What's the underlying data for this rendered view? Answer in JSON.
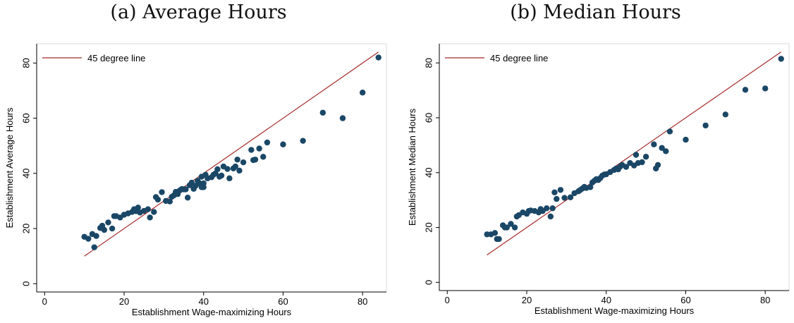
{
  "colors": {
    "line": "#a52a2a",
    "points": "#1a4766",
    "axis": "#000000",
    "frame": "#d9d9d9"
  },
  "chart_data": [
    {
      "type": "scatter",
      "title": "(a) Average Hours",
      "xlabel": "Establishment Wage-maximizing Hours",
      "ylabel": "Establishment Average Hours",
      "xlim": [
        -2,
        86
      ],
      "ylim": [
        -3,
        87
      ],
      "xticks": [
        0,
        20,
        40,
        60,
        80
      ],
      "yticks": [
        0,
        20,
        40,
        60,
        80
      ],
      "grid": false,
      "legend_position": "top-left",
      "line": {
        "name": "45 degree line",
        "x": [
          10,
          84
        ],
        "y": [
          10,
          84
        ]
      },
      "points": [
        [
          10,
          17
        ],
        [
          11,
          16.3
        ],
        [
          12,
          18
        ],
        [
          12.5,
          13.2
        ],
        [
          13,
          17.3
        ],
        [
          14,
          20.2
        ],
        [
          14.5,
          21
        ],
        [
          15,
          19.5
        ],
        [
          16,
          22.2
        ],
        [
          17,
          20
        ],
        [
          17.5,
          24.5
        ],
        [
          18,
          24.5
        ],
        [
          19,
          24
        ],
        [
          20,
          25
        ],
        [
          21,
          25.5
        ],
        [
          22,
          26
        ],
        [
          22.5,
          27
        ],
        [
          23,
          26.3
        ],
        [
          23.5,
          27.6
        ],
        [
          24,
          25.8
        ],
        [
          25,
          26.4
        ],
        [
          26,
          27
        ],
        [
          26.5,
          24
        ],
        [
          27.5,
          26
        ],
        [
          28,
          31.4
        ],
        [
          28.5,
          30.5
        ],
        [
          29.5,
          33.2
        ],
        [
          30.5,
          30
        ],
        [
          31.5,
          29.8
        ],
        [
          32,
          31.5
        ],
        [
          32.5,
          32
        ],
        [
          33,
          33.3
        ],
        [
          33.5,
          32.5
        ],
        [
          34,
          33.8
        ],
        [
          34.5,
          34.3
        ],
        [
          35,
          34.2
        ],
        [
          35.5,
          34.2
        ],
        [
          36,
          31.2
        ],
        [
          36.5,
          35.7
        ],
        [
          37,
          36.6
        ],
        [
          37.5,
          34.4
        ],
        [
          38,
          35.5
        ],
        [
          38.5,
          37.3
        ],
        [
          39,
          36.4
        ],
        [
          39.5,
          35
        ],
        [
          40,
          36.4
        ],
        [
          39.5,
          38.8
        ],
        [
          40,
          35
        ],
        [
          40.5,
          39.5
        ],
        [
          41,
          38.2
        ],
        [
          42,
          38.6
        ],
        [
          42.5,
          39.5
        ],
        [
          43,
          40
        ],
        [
          43.5,
          41.5
        ],
        [
          44,
          38.8
        ],
        [
          44.5,
          39.2
        ],
        [
          45,
          42.5
        ],
        [
          46,
          41.6
        ],
        [
          46.5,
          38.2
        ],
        [
          47.5,
          41.8
        ],
        [
          48,
          42.5
        ],
        [
          48.5,
          45
        ],
        [
          49,
          41
        ],
        [
          50,
          44
        ],
        [
          52,
          48.5
        ],
        [
          52.5,
          44.8
        ],
        [
          53,
          45
        ],
        [
          54,
          49
        ],
        [
          55,
          46
        ],
        [
          56,
          51.2
        ],
        [
          60,
          50.5
        ],
        [
          65,
          51.8
        ],
        [
          70,
          62
        ],
        [
          75,
          60
        ],
        [
          80,
          69.3
        ],
        [
          84,
          82
        ]
      ]
    },
    {
      "type": "scatter",
      "title": "(b) Median Hours",
      "xlabel": "Establishment Wage-maximizing Hours",
      "ylabel": "Establishment Median Hours",
      "xlim": [
        -2,
        86
      ],
      "ylim": [
        -3,
        87
      ],
      "xticks": [
        0,
        20,
        40,
        60,
        80
      ],
      "yticks": [
        0,
        20,
        40,
        60,
        80
      ],
      "grid": false,
      "legend_position": "top-left",
      "line": {
        "name": "45 degree line",
        "x": [
          10,
          84
        ],
        "y": [
          10,
          84
        ]
      },
      "points": [
        [
          10,
          17.5
        ],
        [
          11,
          17.5
        ],
        [
          12,
          18
        ],
        [
          12.5,
          15.8
        ],
        [
          13,
          15.8
        ],
        [
          14,
          20.8
        ],
        [
          14.5,
          20
        ],
        [
          15,
          20
        ],
        [
          16,
          21.3
        ],
        [
          17,
          20
        ],
        [
          17.5,
          24
        ],
        [
          18,
          24.5
        ],
        [
          19,
          25.5
        ],
        [
          20,
          25
        ],
        [
          20.5,
          26
        ],
        [
          21,
          26.2
        ],
        [
          22,
          26
        ],
        [
          23,
          25.5
        ],
        [
          23.5,
          26.7
        ],
        [
          24,
          26
        ],
        [
          25,
          27
        ],
        [
          26,
          24
        ],
        [
          26.5,
          27
        ],
        [
          27,
          32.8
        ],
        [
          27.5,
          30.4
        ],
        [
          28.5,
          33.7
        ],
        [
          29.5,
          30.8
        ],
        [
          31,
          31
        ],
        [
          32,
          32.5
        ],
        [
          33,
          33.2
        ],
        [
          33.5,
          33.7
        ],
        [
          34,
          34.2
        ],
        [
          34.5,
          34.8
        ],
        [
          35,
          34.4
        ],
        [
          36,
          34.7
        ],
        [
          36.5,
          36.4
        ],
        [
          37,
          37
        ],
        [
          37.5,
          37.6
        ],
        [
          38,
          37.3
        ],
        [
          38.5,
          38
        ],
        [
          39,
          38.9
        ],
        [
          39.5,
          39.3
        ],
        [
          40,
          39.4
        ],
        [
          41,
          40.2
        ],
        [
          42,
          41
        ],
        [
          42.5,
          41.5
        ],
        [
          43,
          41.2
        ],
        [
          43.5,
          42.2
        ],
        [
          44,
          42.8
        ],
        [
          45,
          42.1
        ],
        [
          46,
          43.5
        ],
        [
          47,
          42.6
        ],
        [
          47.5,
          46.5
        ],
        [
          48,
          43.5
        ],
        [
          49,
          43.8
        ],
        [
          50,
          45.8
        ],
        [
          52,
          50.3
        ],
        [
          52.5,
          41.5
        ],
        [
          53,
          42.8
        ],
        [
          54,
          49
        ],
        [
          55,
          47.8
        ],
        [
          56,
          55
        ],
        [
          60,
          52
        ],
        [
          65,
          57.2
        ],
        [
          70,
          61.2
        ],
        [
          75,
          70.2
        ],
        [
          80,
          70.7
        ],
        [
          84,
          81.5
        ]
      ]
    }
  ]
}
